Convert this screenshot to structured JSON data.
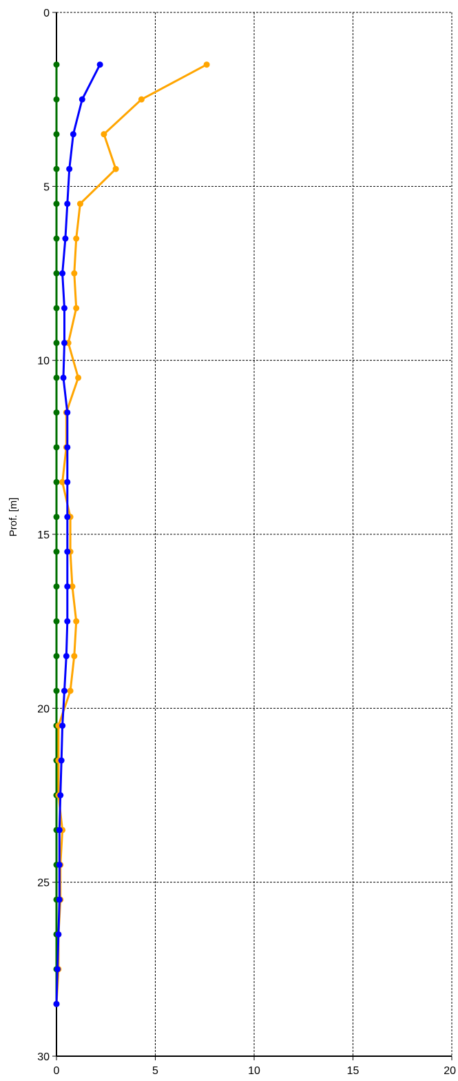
{
  "chart_data": {
    "type": "line",
    "title": "",
    "xlabel": "",
    "ylabel": "Prof. [m]",
    "xlim": [
      0,
      20
    ],
    "ylim": [
      0,
      30
    ],
    "y_inverted": true,
    "grid": true,
    "x_ticks": [
      "0",
      "5",
      "10",
      "15",
      "20"
    ],
    "y_ticks": [
      "0",
      "5",
      "10",
      "15",
      "20",
      "25",
      "30"
    ],
    "series": [
      {
        "color": "#ffa500",
        "depth": [
          1.5,
          2.5,
          3.5,
          4.5,
          5.5,
          6.5,
          7.5,
          8.5,
          9.5,
          10.5,
          11.5,
          12.5,
          13.5,
          14.5,
          15.5,
          16.5,
          17.5,
          18.5,
          19.5,
          20.5,
          21.5,
          22.5,
          23.5,
          24.5,
          25.5,
          26.5,
          27.5,
          28.5
        ],
        "values": [
          7.6,
          4.3,
          2.4,
          3.0,
          1.2,
          1.0,
          0.9,
          1.0,
          0.6,
          1.1,
          0.5,
          0.5,
          0.3,
          0.7,
          0.7,
          0.8,
          1.0,
          0.9,
          0.7,
          0.1,
          0.1,
          0.1,
          0.3,
          0.2,
          0.2,
          0.1,
          0.1,
          0.0
        ]
      },
      {
        "color": "#0000ff",
        "depth": [
          1.5,
          2.5,
          3.5,
          4.5,
          5.5,
          6.5,
          7.5,
          8.5,
          9.5,
          10.5,
          11.5,
          12.5,
          13.5,
          14.5,
          15.5,
          16.5,
          17.5,
          18.5,
          19.5,
          20.5,
          21.5,
          22.5,
          23.5,
          24.5,
          25.5,
          26.5,
          27.5,
          28.5
        ],
        "values": [
          2.2,
          1.3,
          0.85,
          0.65,
          0.55,
          0.45,
          0.3,
          0.4,
          0.4,
          0.35,
          0.55,
          0.55,
          0.55,
          0.55,
          0.55,
          0.55,
          0.55,
          0.5,
          0.4,
          0.3,
          0.25,
          0.2,
          0.15,
          0.15,
          0.15,
          0.1,
          0.05,
          0.0
        ]
      },
      {
        "color": "#007000",
        "depth": [
          1.5,
          2.5,
          3.5,
          4.5,
          5.5,
          6.5,
          7.5,
          8.5,
          9.5,
          10.5,
          11.5,
          12.5,
          13.5,
          14.5,
          15.5,
          16.5,
          17.5,
          18.5,
          19.5,
          20.5,
          21.5,
          22.5,
          23.5,
          24.5,
          25.5,
          26.5,
          27.5,
          28.5
        ],
        "values": [
          0,
          0,
          0,
          0,
          0,
          0,
          0,
          0,
          0,
          0,
          0,
          0,
          0,
          0,
          0,
          0,
          0,
          0,
          0,
          0,
          0,
          0,
          0,
          0,
          0,
          0,
          0,
          0
        ]
      }
    ]
  }
}
